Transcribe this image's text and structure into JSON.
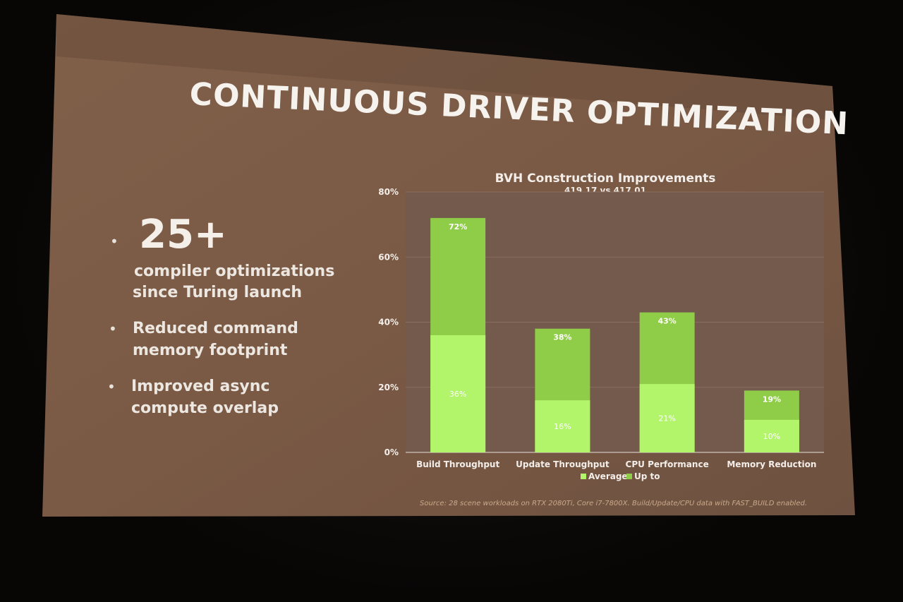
{
  "slide": {
    "title": "CONTINUOUS DRIVER OPTIMIZATION",
    "bullets": [
      {
        "highlight": "25+",
        "lines": [
          "compiler optimizations",
          "since Turing launch"
        ]
      },
      {
        "lines": [
          "Reduced command",
          "memory footprint"
        ]
      },
      {
        "lines": [
          "Improved async",
          "compute overlap"
        ]
      }
    ],
    "bullet_glyph": "•",
    "source": "Source: 28 scene workloads on RTX 2080Ti, Core i7-7800X. Build/Update/CPU data with FAST_BUILD enabled.",
    "colors": {
      "slide_bg": "#7a5c48",
      "plot_bg": "#745a4d",
      "average": "#b2f56a",
      "up_to": "#8fcc48",
      "text": "#f2ede8"
    }
  },
  "chart_data": {
    "type": "bar",
    "title": "BVH Construction Improvements",
    "subtitle": "419.17 vs 417.01",
    "categories": [
      "Build Throughput",
      "Update Throughput",
      "CPU Performance",
      "Memory Reduction"
    ],
    "series": [
      {
        "name": "Average",
        "values": [
          36,
          16,
          21,
          10
        ],
        "labels": [
          "36%",
          "16%",
          "21%",
          "10%"
        ],
        "color": "#b2f56a"
      },
      {
        "name": "Up to",
        "values": [
          72,
          38,
          43,
          19
        ],
        "labels": [
          "72%",
          "38%",
          "43%",
          "19%"
        ],
        "color": "#8fcc48"
      }
    ],
    "ylim": [
      0,
      80
    ],
    "yticks": [
      0,
      20,
      40,
      60,
      80
    ],
    "ytick_labels": [
      "0%",
      "20%",
      "40%",
      "60%",
      "80%"
    ],
    "grid": true,
    "legend": "bottom"
  }
}
